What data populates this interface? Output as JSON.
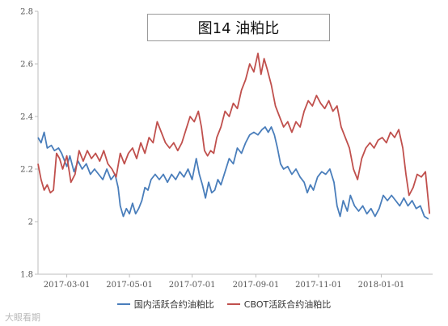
{
  "chart_data": {
    "type": "line",
    "title": "图14 油粕比",
    "x_ticks": [
      "2017-03-01",
      "2017-05-01",
      "2017-07-01",
      "2017-09-01",
      "2017-11-01",
      "2018-01-01"
    ],
    "y_ticks": [
      "1.8",
      "2",
      "2.2",
      "2.4",
      "2.6",
      "2.8"
    ],
    "ylim": [
      1.8,
      2.8
    ],
    "xlim": [
      "2017-02-01",
      "2018-02-20"
    ],
    "grid": false,
    "legend_position": "bottom",
    "series": [
      {
        "name": "国内活跃合约油粕比",
        "color": "#4a7ebb",
        "points": [
          [
            "2017-02-01",
            2.32
          ],
          [
            "2017-02-04",
            2.3
          ],
          [
            "2017-02-07",
            2.34
          ],
          [
            "2017-02-10",
            2.28
          ],
          [
            "2017-02-14",
            2.29
          ],
          [
            "2017-02-17",
            2.27
          ],
          [
            "2017-02-21",
            2.28
          ],
          [
            "2017-02-24",
            2.26
          ],
          [
            "2017-03-01",
            2.21
          ],
          [
            "2017-03-04",
            2.25
          ],
          [
            "2017-03-08",
            2.19
          ],
          [
            "2017-03-12",
            2.23
          ],
          [
            "2017-03-16",
            2.2
          ],
          [
            "2017-03-20",
            2.22
          ],
          [
            "2017-03-24",
            2.18
          ],
          [
            "2017-03-28",
            2.2
          ],
          [
            "2017-04-01",
            2.18
          ],
          [
            "2017-04-05",
            2.16
          ],
          [
            "2017-04-09",
            2.2
          ],
          [
            "2017-04-13",
            2.16
          ],
          [
            "2017-04-17",
            2.18
          ],
          [
            "2017-04-20",
            2.13
          ],
          [
            "2017-04-22",
            2.06
          ],
          [
            "2017-04-25",
            2.02
          ],
          [
            "2017-04-28",
            2.05
          ],
          [
            "2017-05-01",
            2.03
          ],
          [
            "2017-05-04",
            2.07
          ],
          [
            "2017-05-07",
            2.03
          ],
          [
            "2017-05-10",
            2.05
          ],
          [
            "2017-05-13",
            2.08
          ],
          [
            "2017-05-16",
            2.13
          ],
          [
            "2017-05-19",
            2.12
          ],
          [
            "2017-05-22",
            2.16
          ],
          [
            "2017-05-26",
            2.18
          ],
          [
            "2017-05-30",
            2.16
          ],
          [
            "2017-06-03",
            2.18
          ],
          [
            "2017-06-07",
            2.15
          ],
          [
            "2017-06-11",
            2.18
          ],
          [
            "2017-06-15",
            2.16
          ],
          [
            "2017-06-19",
            2.19
          ],
          [
            "2017-06-23",
            2.17
          ],
          [
            "2017-06-27",
            2.2
          ],
          [
            "2017-07-01",
            2.16
          ],
          [
            "2017-07-05",
            2.24
          ],
          [
            "2017-07-08",
            2.18
          ],
          [
            "2017-07-11",
            2.14
          ],
          [
            "2017-07-14",
            2.09
          ],
          [
            "2017-07-17",
            2.15
          ],
          [
            "2017-07-20",
            2.11
          ],
          [
            "2017-07-23",
            2.12
          ],
          [
            "2017-07-26",
            2.16
          ],
          [
            "2017-07-29",
            2.14
          ],
          [
            "2017-08-02",
            2.19
          ],
          [
            "2017-08-06",
            2.24
          ],
          [
            "2017-08-10",
            2.22
          ],
          [
            "2017-08-14",
            2.28
          ],
          [
            "2017-08-18",
            2.26
          ],
          [
            "2017-08-22",
            2.3
          ],
          [
            "2017-08-26",
            2.33
          ],
          [
            "2017-08-30",
            2.34
          ],
          [
            "2017-09-03",
            2.33
          ],
          [
            "2017-09-07",
            2.35
          ],
          [
            "2017-09-10",
            2.36
          ],
          [
            "2017-09-13",
            2.34
          ],
          [
            "2017-09-16",
            2.36
          ],
          [
            "2017-09-19",
            2.33
          ],
          [
            "2017-09-22",
            2.28
          ],
          [
            "2017-09-25",
            2.22
          ],
          [
            "2017-09-28",
            2.2
          ],
          [
            "2017-10-02",
            2.21
          ],
          [
            "2017-10-06",
            2.18
          ],
          [
            "2017-10-10",
            2.2
          ],
          [
            "2017-10-14",
            2.17
          ],
          [
            "2017-10-18",
            2.15
          ],
          [
            "2017-10-21",
            2.11
          ],
          [
            "2017-10-24",
            2.14
          ],
          [
            "2017-10-27",
            2.12
          ],
          [
            "2017-10-31",
            2.17
          ],
          [
            "2017-11-04",
            2.19
          ],
          [
            "2017-11-08",
            2.18
          ],
          [
            "2017-11-12",
            2.2
          ],
          [
            "2017-11-16",
            2.15
          ],
          [
            "2017-11-19",
            2.06
          ],
          [
            "2017-11-22",
            2.02
          ],
          [
            "2017-11-25",
            2.08
          ],
          [
            "2017-11-29",
            2.04
          ],
          [
            "2017-12-02",
            2.1
          ],
          [
            "2017-12-06",
            2.06
          ],
          [
            "2017-12-10",
            2.04
          ],
          [
            "2017-12-14",
            2.06
          ],
          [
            "2017-12-18",
            2.03
          ],
          [
            "2017-12-22",
            2.05
          ],
          [
            "2017-12-26",
            2.02
          ],
          [
            "2017-12-30",
            2.05
          ],
          [
            "2018-01-03",
            2.1
          ],
          [
            "2018-01-07",
            2.08
          ],
          [
            "2018-01-11",
            2.1
          ],
          [
            "2018-01-15",
            2.08
          ],
          [
            "2018-01-19",
            2.06
          ],
          [
            "2018-01-23",
            2.09
          ],
          [
            "2018-01-27",
            2.06
          ],
          [
            "2018-01-31",
            2.08
          ],
          [
            "2018-02-04",
            2.05
          ],
          [
            "2018-02-08",
            2.06
          ],
          [
            "2018-02-12",
            2.02
          ],
          [
            "2018-02-16",
            2.01
          ]
        ]
      },
      {
        "name": "CBOT活跃合约油粕比",
        "color": "#c0504d",
        "points": [
          [
            "2017-02-01",
            2.22
          ],
          [
            "2017-02-04",
            2.16
          ],
          [
            "2017-02-07",
            2.12
          ],
          [
            "2017-02-10",
            2.14
          ],
          [
            "2017-02-13",
            2.11
          ],
          [
            "2017-02-16",
            2.12
          ],
          [
            "2017-02-19",
            2.26
          ],
          [
            "2017-02-22",
            2.24
          ],
          [
            "2017-02-25",
            2.2
          ],
          [
            "2017-03-01",
            2.25
          ],
          [
            "2017-03-05",
            2.15
          ],
          [
            "2017-03-09",
            2.18
          ],
          [
            "2017-03-13",
            2.27
          ],
          [
            "2017-03-17",
            2.23
          ],
          [
            "2017-03-21",
            2.27
          ],
          [
            "2017-03-25",
            2.24
          ],
          [
            "2017-03-29",
            2.26
          ],
          [
            "2017-04-02",
            2.23
          ],
          [
            "2017-04-06",
            2.27
          ],
          [
            "2017-04-10",
            2.22
          ],
          [
            "2017-04-14",
            2.2
          ],
          [
            "2017-04-18",
            2.17
          ],
          [
            "2017-04-22",
            2.26
          ],
          [
            "2017-04-26",
            2.22
          ],
          [
            "2017-04-30",
            2.26
          ],
          [
            "2017-05-04",
            2.28
          ],
          [
            "2017-05-08",
            2.24
          ],
          [
            "2017-05-12",
            2.3
          ],
          [
            "2017-05-16",
            2.26
          ],
          [
            "2017-05-20",
            2.32
          ],
          [
            "2017-05-24",
            2.3
          ],
          [
            "2017-05-28",
            2.38
          ],
          [
            "2017-06-01",
            2.34
          ],
          [
            "2017-06-05",
            2.3
          ],
          [
            "2017-06-09",
            2.28
          ],
          [
            "2017-06-13",
            2.3
          ],
          [
            "2017-06-17",
            2.27
          ],
          [
            "2017-06-21",
            2.3
          ],
          [
            "2017-06-25",
            2.35
          ],
          [
            "2017-06-29",
            2.4
          ],
          [
            "2017-07-03",
            2.38
          ],
          [
            "2017-07-07",
            2.42
          ],
          [
            "2017-07-10",
            2.36
          ],
          [
            "2017-07-13",
            2.27
          ],
          [
            "2017-07-16",
            2.25
          ],
          [
            "2017-07-19",
            2.27
          ],
          [
            "2017-07-22",
            2.26
          ],
          [
            "2017-07-25",
            2.32
          ],
          [
            "2017-07-29",
            2.36
          ],
          [
            "2017-08-02",
            2.42
          ],
          [
            "2017-08-06",
            2.4
          ],
          [
            "2017-08-10",
            2.45
          ],
          [
            "2017-08-14",
            2.43
          ],
          [
            "2017-08-18",
            2.5
          ],
          [
            "2017-08-22",
            2.54
          ],
          [
            "2017-08-26",
            2.6
          ],
          [
            "2017-08-30",
            2.57
          ],
          [
            "2017-09-03",
            2.64
          ],
          [
            "2017-09-06",
            2.56
          ],
          [
            "2017-09-09",
            2.62
          ],
          [
            "2017-09-12",
            2.58
          ],
          [
            "2017-09-16",
            2.52
          ],
          [
            "2017-09-20",
            2.44
          ],
          [
            "2017-09-24",
            2.4
          ],
          [
            "2017-09-28",
            2.36
          ],
          [
            "2017-10-02",
            2.38
          ],
          [
            "2017-10-06",
            2.34
          ],
          [
            "2017-10-10",
            2.38
          ],
          [
            "2017-10-14",
            2.36
          ],
          [
            "2017-10-18",
            2.42
          ],
          [
            "2017-10-22",
            2.46
          ],
          [
            "2017-10-26",
            2.44
          ],
          [
            "2017-10-30",
            2.48
          ],
          [
            "2017-11-03",
            2.45
          ],
          [
            "2017-11-07",
            2.43
          ],
          [
            "2017-11-11",
            2.46
          ],
          [
            "2017-11-15",
            2.42
          ],
          [
            "2017-11-19",
            2.44
          ],
          [
            "2017-11-23",
            2.36
          ],
          [
            "2017-11-27",
            2.32
          ],
          [
            "2017-12-01",
            2.28
          ],
          [
            "2017-12-05",
            2.2
          ],
          [
            "2017-12-09",
            2.16
          ],
          [
            "2017-12-13",
            2.24
          ],
          [
            "2017-12-17",
            2.28
          ],
          [
            "2017-12-21",
            2.3
          ],
          [
            "2017-12-25",
            2.28
          ],
          [
            "2017-12-29",
            2.31
          ],
          [
            "2018-01-02",
            2.32
          ],
          [
            "2018-01-06",
            2.3
          ],
          [
            "2018-01-10",
            2.34
          ],
          [
            "2018-01-14",
            2.32
          ],
          [
            "2018-01-18",
            2.35
          ],
          [
            "2018-01-22",
            2.28
          ],
          [
            "2018-01-25",
            2.18
          ],
          [
            "2018-01-28",
            2.1
          ],
          [
            "2018-02-01",
            2.13
          ],
          [
            "2018-02-05",
            2.18
          ],
          [
            "2018-02-09",
            2.17
          ],
          [
            "2018-02-13",
            2.19
          ],
          [
            "2018-02-17",
            2.03
          ]
        ]
      }
    ]
  },
  "watermark": "大眼看期"
}
